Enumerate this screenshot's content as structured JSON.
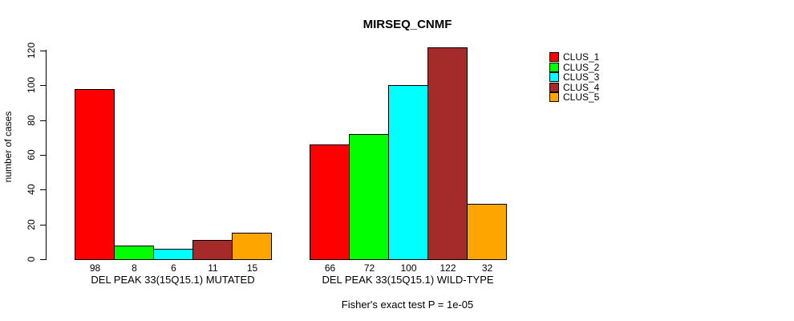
{
  "chart_data": {
    "type": "bar",
    "title": "MIRSEQ_CNMF",
    "ylabel": "number of cases",
    "ylim": [
      0,
      120
    ],
    "yticks": [
      0,
      20,
      40,
      60,
      80,
      100,
      120
    ],
    "grid": false,
    "legend_position": "right",
    "groups": [
      {
        "label": "DEL PEAK 33(15Q15.1) MUTATED"
      },
      {
        "label": "DEL PEAK 33(15Q15.1) WILD-TYPE"
      }
    ],
    "series": [
      {
        "name": "CLUS_1",
        "color": "#FF0000",
        "values": [
          98,
          66
        ]
      },
      {
        "name": "CLUS_2",
        "color": "#00FF00",
        "values": [
          8,
          72
        ]
      },
      {
        "name": "CLUS_3",
        "color": "#00FFFF",
        "values": [
          6,
          100
        ]
      },
      {
        "name": "CLUS_4",
        "color": "#A52A2A",
        "values": [
          11,
          122
        ]
      },
      {
        "name": "CLUS_5",
        "color": "#FFA500",
        "values": [
          15,
          32
        ]
      }
    ],
    "annotation": "Fisher's exact test P = 1e-05"
  }
}
